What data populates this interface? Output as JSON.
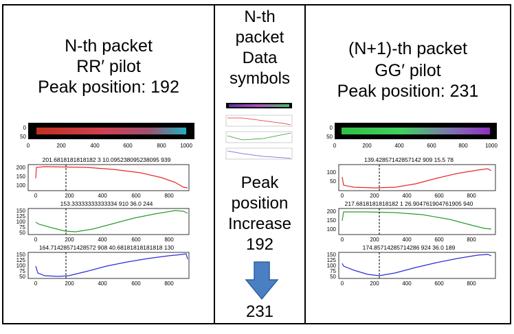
{
  "left": {
    "title_line1": "N-th packet",
    "title_line2": "RR′ pilot",
    "title_line3": "Peak position: 192",
    "strip_yticks": [
      "0",
      "50"
    ],
    "strip_xticks": [
      "0",
      "200",
      "400",
      "600",
      "800",
      "1000"
    ],
    "plots": [
      {
        "title": "201.6818181818182 3 10.095238095238095 939",
        "yticks": [
          "200",
          "150",
          "100"
        ],
        "xticks": [
          "0",
          "200",
          "400",
          "600",
          "800"
        ]
      },
      {
        "title": "153.33333333333334 910 36.0 244",
        "yticks": [
          "150",
          "125",
          "100",
          "75",
          "50"
        ],
        "xticks": [
          "0",
          "200",
          "400",
          "600",
          "800"
        ]
      },
      {
        "title": "164.71428571428572 908 40.68181818181818 130",
        "yticks": [
          "150",
          "125",
          "100",
          "75",
          "50"
        ],
        "xticks": [
          "0",
          "200",
          "400",
          "600",
          "800"
        ]
      }
    ]
  },
  "middle": {
    "title_line1": "N-th",
    "title_line2": "packet",
    "title_line3": "Data",
    "title_line4": "symbols",
    "peak_line1": "Peak",
    "peak_line2": "position",
    "peak_line3": "Increase",
    "from_value": "192",
    "to_value": "231"
  },
  "right": {
    "title_line1": "(N+1)-th packet",
    "title_line2": "GG′ pilot",
    "title_line3": "Peak position: 231",
    "strip_yticks": [
      "0",
      "50"
    ],
    "strip_xticks": [
      "0",
      "200",
      "400",
      "600",
      "800",
      "1000"
    ],
    "plots": [
      {
        "title": "139.42857142857142 909 15.5 78",
        "yticks": [
          "100",
          "50"
        ],
        "xticks": [
          "0",
          "200",
          "400",
          "600",
          "800"
        ]
      },
      {
        "title": "217.6818181818182 1 26.904761904761905 940",
        "yticks": [
          "200",
          "150",
          "100"
        ],
        "xticks": [
          "0",
          "200",
          "400",
          "600",
          "800"
        ]
      },
      {
        "title": "174.85714285714286 924 36.0 189",
        "yticks": [
          "150",
          "125",
          "100",
          "75",
          "50"
        ],
        "xticks": [
          "0",
          "200",
          "400",
          "600",
          "800"
        ]
      }
    ]
  },
  "colors": {
    "red": "#e8262a",
    "green": "#2a9a2a",
    "blue": "#2a2ad6",
    "arrow": "#4a7fc4"
  }
}
